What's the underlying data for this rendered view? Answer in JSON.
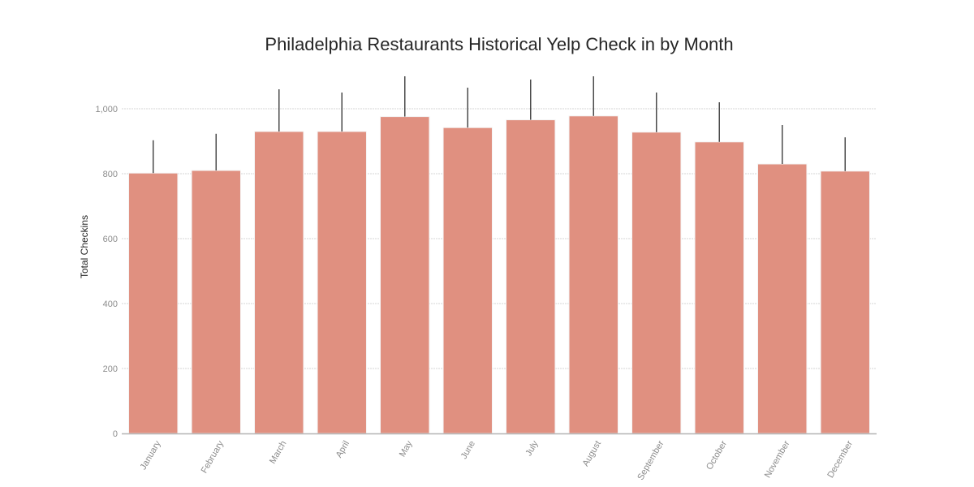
{
  "chart_data": {
    "type": "bar",
    "title": "Philadelphia Restaurants Historical Yelp Check in by Month",
    "xlabel": "",
    "ylabel": "Total Checkins",
    "categories": [
      "January",
      "February",
      "March",
      "April",
      "May",
      "June",
      "July",
      "August",
      "September",
      "October",
      "November",
      "December"
    ],
    "values": [
      802,
      810,
      930,
      930,
      976,
      942,
      966,
      978,
      928,
      898,
      830,
      808
    ],
    "error_upper": [
      903,
      923,
      1060,
      1050,
      1100,
      1065,
      1090,
      1100,
      1050,
      1020,
      950,
      912
    ],
    "ylim": [
      0,
      1100
    ],
    "yticks": [
      0,
      200,
      400,
      600,
      800,
      1000
    ],
    "ytick_labels": [
      "0",
      "200",
      "400",
      "600",
      "800",
      "1,000"
    ],
    "grid": true,
    "bar_color": "#e09080",
    "error_color": "#4a4a4a"
  }
}
